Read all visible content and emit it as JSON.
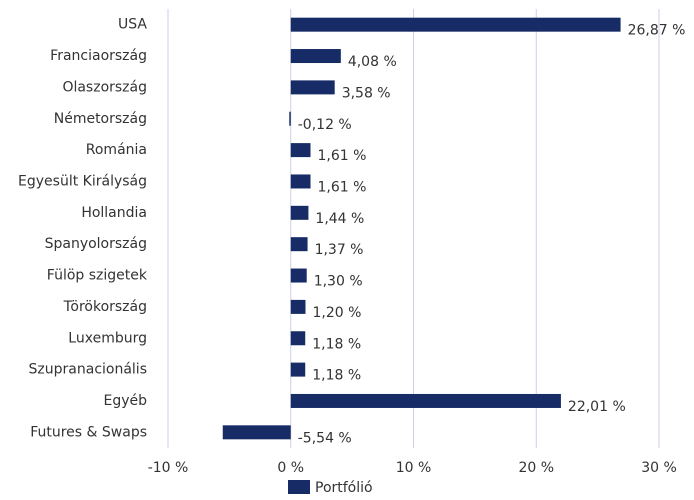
{
  "chart_data": {
    "type": "bar",
    "orientation": "horizontal",
    "categories": [
      "USA",
      "Franciaország",
      "Olaszország",
      "Németország",
      "Románia",
      "Egyesült Királyság",
      "Hollandia",
      "Spanyolország",
      "Fülöp szigetek",
      "Törökország",
      "Luxemburg",
      "Szupranacionális",
      "Egyéb",
      "Futures & Swaps"
    ],
    "series": [
      {
        "name": "Portfólió",
        "color": "#172c66",
        "values": [
          26.87,
          4.08,
          3.58,
          -0.12,
          1.61,
          1.61,
          1.44,
          1.37,
          1.3,
          1.2,
          1.18,
          1.18,
          22.01,
          -5.54
        ],
        "value_labels": [
          "26,87 %",
          "4,08 %",
          "3,58 %",
          "-0,12 %",
          "1,61 %",
          "1,61 %",
          "1,44 %",
          "1,37 %",
          "1,30 %",
          "1,20 %",
          "1,18 %",
          "1,18 %",
          "22,01 %",
          "-5,54 %"
        ]
      }
    ],
    "xlim": [
      -10,
      30
    ],
    "xticks": [
      {
        "value": -10,
        "label": "-10 %"
      },
      {
        "value": 0,
        "label": "0 %"
      },
      {
        "value": 10,
        "label": "10 %"
      },
      {
        "value": 20,
        "label": "20 %"
      },
      {
        "value": 30,
        "label": "30 %"
      }
    ],
    "grid": true,
    "legend": "bottom"
  }
}
